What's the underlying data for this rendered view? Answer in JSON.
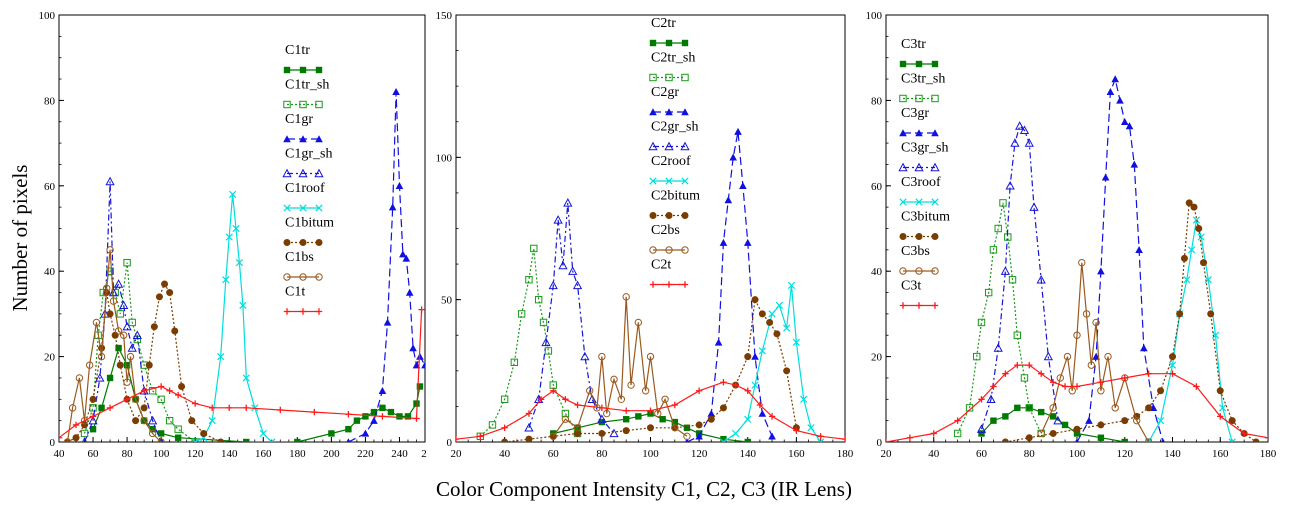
{
  "figure": {
    "ylabel": "Number of pixels",
    "xlabel": "Color Component Intensity C1, C2, C3 (IR Lens)"
  },
  "styles": {
    "tr": {
      "color": "#007a00",
      "marker": "square-filled",
      "dash": "solid"
    },
    "tr_sh": {
      "color": "#1a9a1a",
      "marker": "square-open",
      "dash": "dotted"
    },
    "gr": {
      "color": "#1010e0",
      "marker": "triangle-filled",
      "dash": "dashed"
    },
    "gr_sh": {
      "color": "#1515d8",
      "marker": "triangle-open",
      "dash": "dashdot"
    },
    "roof": {
      "color": "#00dede",
      "marker": "x",
      "dash": "solid"
    },
    "bitum": {
      "color": "#7a3c00",
      "marker": "circle-filled",
      "dash": "dotted"
    },
    "bs": {
      "color": "#9a5a1e",
      "marker": "circle-open",
      "dash": "solid"
    },
    "t": {
      "color": "#ff1a1a",
      "marker": "plus",
      "dash": "solid"
    }
  },
  "chart_data": [
    {
      "type": "line",
      "id": "C1",
      "xlim": [
        40,
        255
      ],
      "ylim": [
        0,
        100
      ],
      "xticks": [
        40,
        60,
        80,
        100,
        120,
        140,
        160,
        180,
        200,
        220,
        240
      ],
      "xtick_labels": [
        "40",
        "60",
        "80",
        "100",
        "120",
        "140",
        "160",
        "180",
        "200",
        "220",
        "240"
      ],
      "yticks": [
        0,
        20,
        40,
        60,
        80,
        100
      ],
      "edge_label": "2",
      "series": [
        {
          "name": "C1tr",
          "style": "tr",
          "x": [
            60,
            65,
            70,
            75,
            80,
            85,
            90,
            95,
            100,
            110,
            150,
            180,
            200,
            210,
            215,
            220,
            225,
            230,
            235,
            240,
            245,
            250,
            252
          ],
          "y": [
            3,
            8,
            15,
            22,
            18,
            10,
            5,
            3,
            2,
            1,
            0,
            0,
            2,
            3,
            5,
            6,
            7,
            8,
            7,
            6,
            6,
            9,
            13
          ]
        },
        {
          "name": "C1tr_sh",
          "style": "tr_sh",
          "x": [
            55,
            60,
            63,
            66,
            70,
            73,
            76,
            80,
            83,
            86,
            90,
            95,
            100,
            105,
            110,
            120
          ],
          "y": [
            2,
            8,
            25,
            35,
            40,
            35,
            30,
            42,
            28,
            24,
            18,
            12,
            10,
            5,
            3,
            0
          ]
        },
        {
          "name": "C1gr",
          "style": "gr",
          "x": [
            210,
            220,
            225,
            230,
            233,
            236,
            238,
            240,
            242,
            244,
            246,
            248,
            250,
            252,
            255
          ],
          "y": [
            0,
            2,
            5,
            12,
            28,
            55,
            82,
            60,
            44,
            43,
            35,
            22,
            18,
            20,
            18
          ]
        },
        {
          "name": "C1gr_sh",
          "style": "gr_sh",
          "x": [
            55,
            60,
            64,
            67,
            70,
            72,
            75,
            78,
            80,
            83,
            86,
            90,
            95,
            100
          ],
          "y": [
            0,
            5,
            15,
            30,
            61,
            35,
            37,
            32,
            27,
            22,
            25,
            12,
            5,
            0
          ]
        },
        {
          "name": "C1roof",
          "style": "roof",
          "x": [
            120,
            125,
            130,
            135,
            138,
            140,
            142,
            144,
            146,
            148,
            150,
            155,
            160,
            165
          ],
          "y": [
            0,
            1,
            5,
            20,
            38,
            48,
            58,
            50,
            42,
            32,
            15,
            8,
            2,
            0
          ]
        },
        {
          "name": "C1bitum",
          "style": "bitum",
          "x": [
            45,
            50,
            55,
            60,
            65,
            68,
            70,
            73,
            76,
            80,
            85,
            90,
            93,
            96,
            99,
            102,
            105,
            108,
            112,
            118,
            125,
            135
          ],
          "y": [
            0,
            1,
            4,
            10,
            22,
            35,
            30,
            25,
            18,
            10,
            5,
            8,
            18,
            27,
            34,
            37,
            35,
            26,
            13,
            5,
            2,
            0
          ]
        },
        {
          "name": "C1bs",
          "style": "bs",
          "x": [
            45,
            48,
            52,
            55,
            58,
            62,
            65,
            68,
            70,
            72,
            75,
            78,
            80,
            82,
            85,
            90,
            95,
            100
          ],
          "y": [
            0,
            8,
            15,
            5,
            18,
            28,
            20,
            36,
            45,
            33,
            26,
            25,
            14,
            20,
            10,
            5,
            2,
            0
          ]
        },
        {
          "name": "C1t",
          "style": "t",
          "x": [
            40,
            50,
            60,
            70,
            80,
            90,
            100,
            105,
            110,
            120,
            130,
            140,
            150,
            170,
            190,
            210,
            230,
            250,
            253
          ],
          "y": [
            1,
            4,
            6,
            8,
            10,
            12,
            13,
            12,
            11,
            9,
            8,
            8,
            8,
            7.5,
            7,
            6.5,
            6,
            5.5,
            31
          ]
        }
      ]
    },
    {
      "type": "line",
      "id": "C2",
      "xlim": [
        20,
        180
      ],
      "ylim": [
        0,
        150
      ],
      "xticks": [
        20,
        40,
        60,
        80,
        100,
        120,
        140,
        160,
        180
      ],
      "xtick_labels": [
        "20",
        "40",
        "60",
        "80",
        "100",
        "120",
        "140",
        "160",
        "180"
      ],
      "yticks": [
        0,
        50,
        100,
        150
      ],
      "series": [
        {
          "name": "C2tr",
          "style": "tr",
          "x": [
            60,
            70,
            80,
            90,
            95,
            100,
            105,
            110,
            115,
            120,
            130,
            140
          ],
          "y": [
            3,
            5,
            7,
            8,
            9,
            10,
            8,
            7,
            5,
            3,
            1,
            0
          ]
        },
        {
          "name": "C2tr_sh",
          "style": "tr_sh",
          "x": [
            30,
            35,
            40,
            44,
            47,
            50,
            52,
            54,
            56,
            58,
            60,
            65,
            70
          ],
          "y": [
            2,
            6,
            15,
            28,
            45,
            57,
            68,
            50,
            42,
            32,
            20,
            10,
            3
          ]
        },
        {
          "name": "C2gr",
          "style": "gr",
          "x": [
            115,
            120,
            125,
            128,
            130,
            132,
            134,
            136,
            138,
            140,
            143,
            146,
            150
          ],
          "y": [
            0,
            2,
            10,
            35,
            70,
            85,
            100,
            109,
            90,
            70,
            30,
            10,
            2
          ]
        },
        {
          "name": "C2gr_sh",
          "style": "gr_sh",
          "x": [
            50,
            54,
            57,
            60,
            62,
            64,
            66,
            68,
            70,
            73,
            76,
            80,
            85
          ],
          "y": [
            5,
            15,
            35,
            55,
            78,
            62,
            84,
            60,
            55,
            30,
            15,
            8,
            3
          ]
        },
        {
          "name": "C2roof",
          "style": "roof",
          "x": [
            130,
            135,
            140,
            143,
            146,
            150,
            153,
            156,
            158,
            160,
            163,
            166,
            170
          ],
          "y": [
            0,
            3,
            8,
            20,
            32,
            45,
            48,
            40,
            55,
            35,
            15,
            5,
            0
          ]
        },
        {
          "name": "C2bitum",
          "style": "bitum",
          "x": [
            40,
            50,
            60,
            70,
            80,
            90,
            100,
            110,
            120,
            125,
            130,
            135,
            140,
            143,
            146,
            149,
            152,
            156,
            160
          ],
          "y": [
            0,
            1,
            2,
            3,
            3,
            4,
            5,
            5,
            6,
            8,
            12,
            20,
            30,
            50,
            45,
            42,
            38,
            25,
            5
          ]
        },
        {
          "name": "C2bs",
          "style": "bs",
          "x": [
            60,
            65,
            70,
            75,
            78,
            80,
            82,
            85,
            88,
            90,
            92,
            95,
            98,
            100,
            103,
            106,
            110,
            115
          ],
          "y": [
            2,
            8,
            5,
            18,
            12,
            30,
            10,
            22,
            15,
            51,
            20,
            42,
            18,
            30,
            10,
            15,
            5,
            2
          ]
        },
        {
          "name": "C2t",
          "style": "t",
          "x": [
            20,
            30,
            40,
            50,
            55,
            60,
            65,
            70,
            80,
            90,
            100,
            110,
            120,
            130,
            135,
            140,
            145,
            150,
            160,
            170,
            180
          ],
          "y": [
            1,
            2,
            5,
            10,
            15,
            18,
            15,
            13,
            12,
            11,
            11,
            13,
            18,
            21,
            20,
            18,
            13,
            9,
            4,
            2,
            1
          ]
        }
      ]
    },
    {
      "type": "line",
      "id": "C3",
      "xlim": [
        20,
        180
      ],
      "ylim": [
        0,
        100
      ],
      "xticks": [
        20,
        40,
        60,
        80,
        100,
        120,
        140,
        160,
        180
      ],
      "xtick_labels": [
        "20",
        "40",
        "60",
        "80",
        "100",
        "120",
        "140",
        "160",
        "180"
      ],
      "yticks": [
        0,
        20,
        40,
        60,
        80,
        100
      ],
      "series": [
        {
          "name": "C3tr",
          "style": "tr",
          "x": [
            60,
            65,
            70,
            75,
            80,
            85,
            90,
            95,
            100,
            110,
            120
          ],
          "y": [
            2,
            5,
            6,
            8,
            8,
            7,
            6,
            4,
            2,
            1,
            0
          ]
        },
        {
          "name": "C3tr_sh",
          "style": "tr_sh",
          "x": [
            50,
            55,
            58,
            60,
            63,
            65,
            67,
            69,
            71,
            73,
            75,
            78,
            80,
            85
          ],
          "y": [
            2,
            8,
            20,
            28,
            35,
            45,
            50,
            56,
            48,
            38,
            25,
            15,
            8,
            2
          ]
        },
        {
          "name": "C3gr",
          "style": "gr",
          "x": [
            100,
            105,
            108,
            110,
            112,
            114,
            116,
            118,
            120,
            122,
            124,
            126,
            128,
            132,
            136
          ],
          "y": [
            0,
            5,
            20,
            40,
            62,
            82,
            85,
            80,
            75,
            74,
            65,
            45,
            22,
            8,
            0
          ]
        },
        {
          "name": "C3gr_sh",
          "style": "gr_sh",
          "x": [
            60,
            64,
            67,
            70,
            72,
            74,
            76,
            78,
            80,
            82,
            85,
            88,
            92
          ],
          "y": [
            3,
            10,
            22,
            40,
            60,
            70,
            74,
            73,
            70,
            55,
            38,
            20,
            5
          ]
        },
        {
          "name": "C3roof",
          "style": "roof",
          "x": [
            130,
            135,
            140,
            143,
            146,
            148,
            150,
            152,
            155,
            158,
            161,
            165
          ],
          "y": [
            0,
            5,
            18,
            30,
            38,
            45,
            52,
            48,
            38,
            25,
            8,
            0
          ]
        },
        {
          "name": "C3bitum",
          "style": "bitum",
          "x": [
            70,
            80,
            90,
            100,
            110,
            120,
            125,
            130,
            135,
            140,
            143,
            145,
            147,
            149,
            151,
            153,
            156,
            160,
            165,
            170,
            175
          ],
          "y": [
            0,
            1,
            2,
            3,
            4,
            5,
            6,
            8,
            12,
            20,
            30,
            43,
            56,
            55,
            50,
            42,
            30,
            12,
            5,
            2,
            0
          ]
        },
        {
          "name": "C3bs",
          "style": "bs",
          "x": [
            85,
            90,
            93,
            96,
            98,
            100,
            102,
            104,
            106,
            108,
            110,
            113,
            116,
            120,
            125,
            130
          ],
          "y": [
            2,
            8,
            15,
            20,
            12,
            25,
            42,
            30,
            18,
            28,
            12,
            20,
            8,
            15,
            5,
            0
          ]
        },
        {
          "name": "C3t",
          "style": "t",
          "x": [
            20,
            30,
            40,
            50,
            60,
            65,
            70,
            75,
            80,
            85,
            90,
            95,
            100,
            110,
            120,
            130,
            140,
            150,
            160,
            170,
            180
          ],
          "y": [
            0,
            1,
            2,
            5,
            10,
            13,
            16,
            18,
            18,
            16,
            14,
            13,
            13,
            14,
            15,
            16,
            16,
            13,
            6,
            2,
            1
          ]
        }
      ]
    }
  ]
}
